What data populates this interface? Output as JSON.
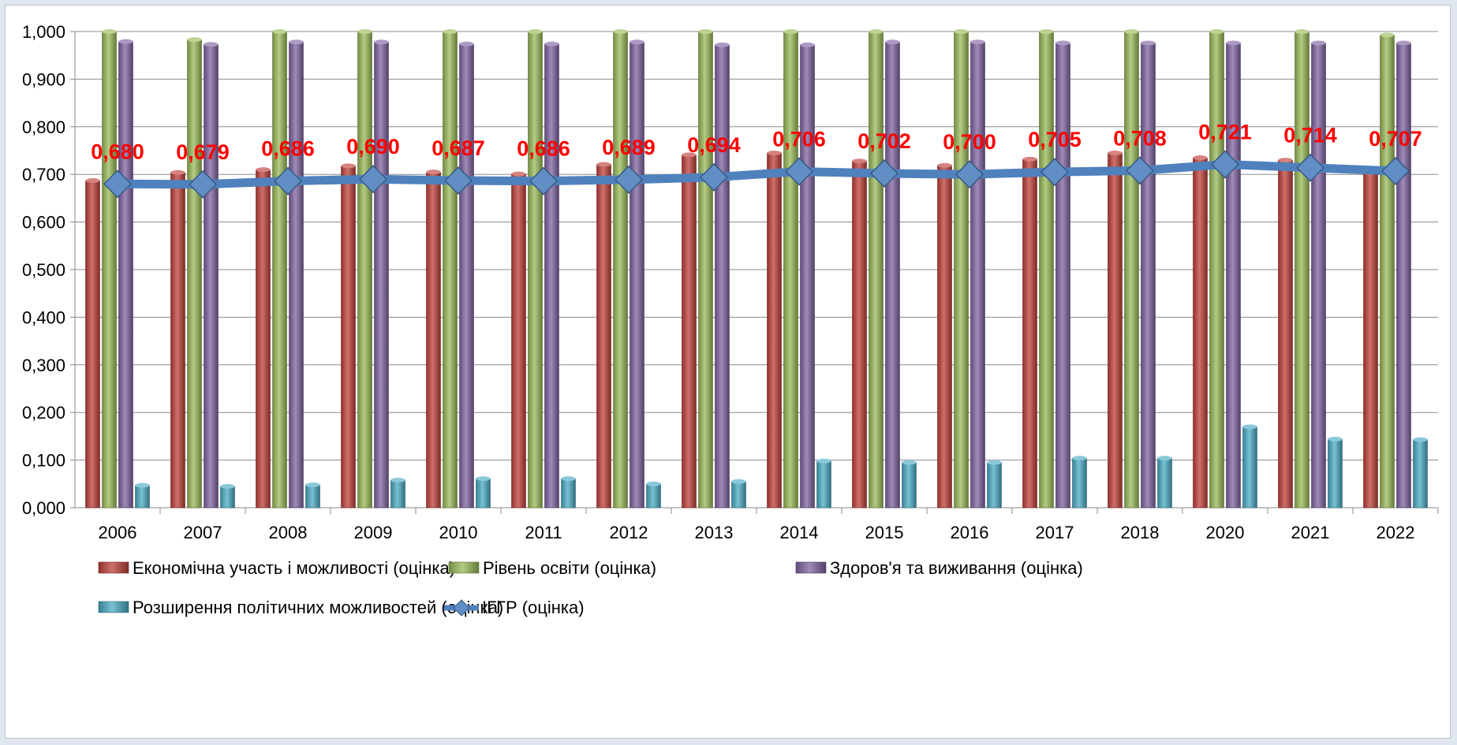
{
  "chart_data": {
    "type": "bar",
    "title": "",
    "xlabel": "",
    "ylabel": "",
    "ylim": [
      0,
      1
    ],
    "y_ticks": [
      "0,000",
      "0,100",
      "0,200",
      "0,300",
      "0,400",
      "0,500",
      "0,600",
      "0,700",
      "0,800",
      "0,900",
      "1,000"
    ],
    "grid": true,
    "legend_position": "bottom",
    "categories": [
      "2006",
      "2007",
      "2008",
      "2009",
      "2010",
      "2011",
      "2012",
      "2013",
      "2014",
      "2015",
      "2016",
      "2017",
      "2018",
      "2020",
      "2021",
      "2022"
    ],
    "series": [
      {
        "name": "Економічна участь і можливості (оцінка)",
        "type": "bar",
        "color": "#c0403a",
        "values": [
          0.687,
          0.704,
          0.71,
          0.718,
          0.705,
          0.701,
          0.721,
          0.741,
          0.745,
          0.728,
          0.719,
          0.732,
          0.745,
          0.735,
          0.73,
          0.704
        ]
      },
      {
        "name": "Рівень освіти (оцінка)",
        "type": "bar",
        "color": "#9bbb59",
        "values": [
          1.0,
          0.983,
          1.0,
          1.0,
          1.0,
          1.0,
          1.0,
          1.0,
          1.0,
          1.0,
          1.0,
          1.0,
          1.0,
          1.0,
          1.0,
          0.993
        ]
      },
      {
        "name": "Здоров'я та виживання (оцінка)",
        "type": "bar",
        "color": "#8064a2",
        "values": [
          0.979,
          0.973,
          0.978,
          0.978,
          0.974,
          0.974,
          0.978,
          0.972,
          0.972,
          0.978,
          0.978,
          0.976,
          0.976,
          0.976,
          0.976,
          0.976
        ]
      },
      {
        "name": "Розширення політичних можливостей (оцінка)",
        "type": "bar",
        "color": "#4bacc6",
        "values": [
          0.047,
          0.045,
          0.048,
          0.058,
          0.061,
          0.061,
          0.05,
          0.055,
          0.098,
          0.095,
          0.095,
          0.104,
          0.104,
          0.17,
          0.144,
          0.143
        ]
      },
      {
        "name": "ІГГР (оцінка)",
        "type": "line",
        "color": "#4f81bd",
        "values": [
          0.68,
          0.679,
          0.686,
          0.69,
          0.687,
          0.686,
          0.689,
          0.694,
          0.706,
          0.702,
          0.7,
          0.705,
          0.708,
          0.721,
          0.714,
          0.707
        ],
        "labels": [
          "0,680",
          "0,679",
          "0,686",
          "0,690",
          "0,687",
          "0,686",
          "0,689",
          "0,694",
          "0,706",
          "0,702",
          "0,700",
          "0,705",
          "0,708",
          "0,721",
          "0,714",
          "0,707"
        ]
      }
    ]
  }
}
